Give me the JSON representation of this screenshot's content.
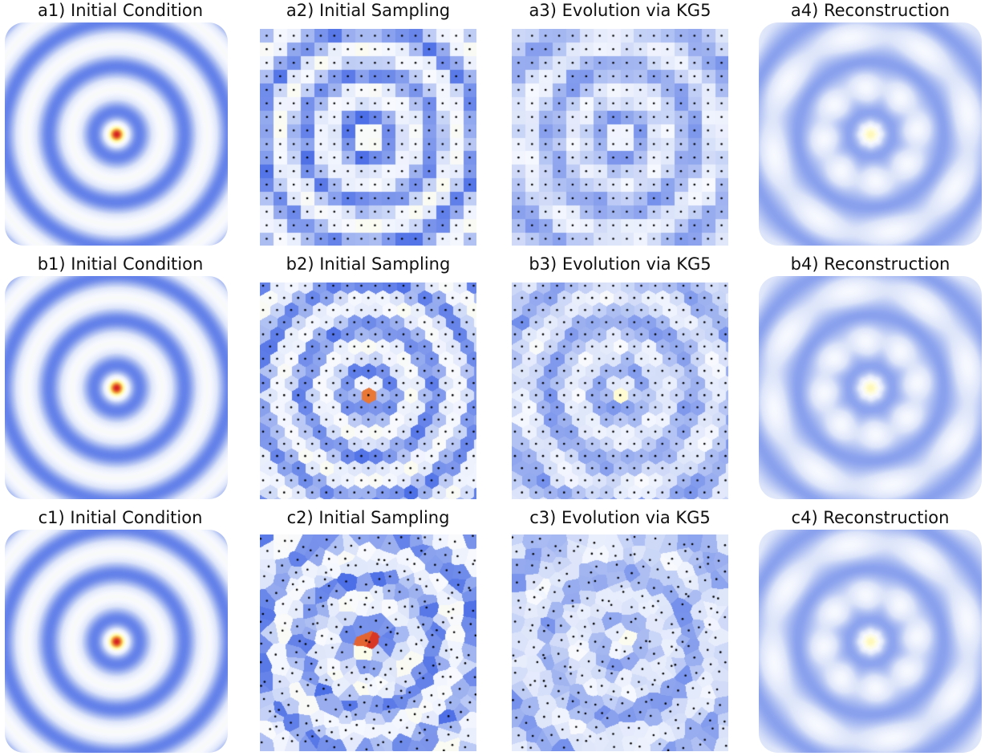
{
  "rows": [
    {
      "sampling": "square",
      "titles": [
        "a1) Initial Condition",
        "a2) Initial Sampling",
        "a3) Evolution via KG5",
        "a4) Reconstruction"
      ]
    },
    {
      "sampling": "hexagonal",
      "titles": [
        "b1) Initial Condition",
        "b2) Initial Sampling",
        "b3) Evolution via KG5",
        "b4) Reconstruction"
      ]
    },
    {
      "sampling": "random",
      "titles": [
        "c1) Initial Condition",
        "c2) Initial Sampling",
        "c3) Evolution via KG5",
        "c4) Reconstruction"
      ]
    }
  ],
  "colormap": [
    "#1e3fe0",
    "#4d6fe6",
    "#9db1f0",
    "#dde5fa",
    "#f7f9ff",
    "#fffde0",
    "#fff5a0",
    "#f2a040",
    "#d42020"
  ]
}
